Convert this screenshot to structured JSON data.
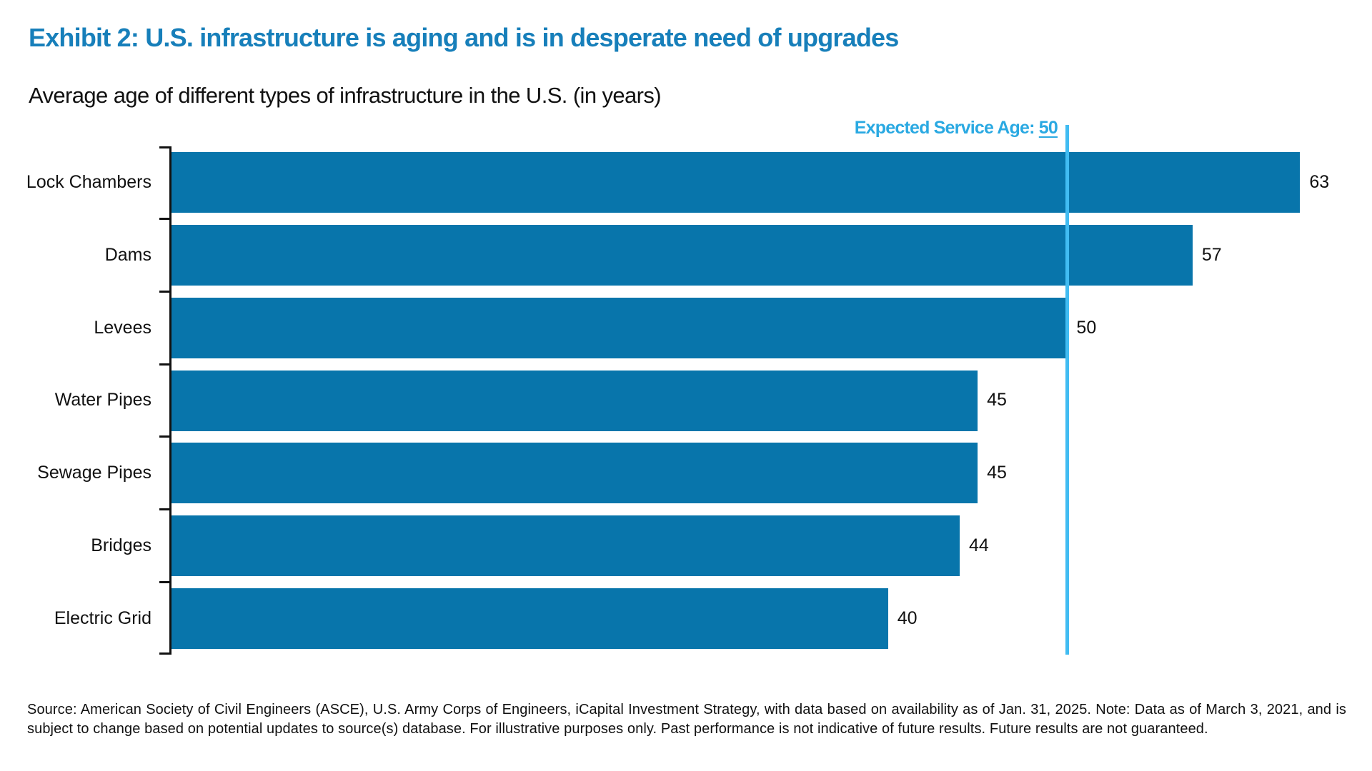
{
  "header": {
    "title": "Exhibit 2: U.S. infrastructure is aging and is in desperate need of upgrades",
    "subtitle": "Average age of different types of infrastructure in the U.S. (in years)"
  },
  "chart_data": {
    "type": "bar",
    "orientation": "horizontal",
    "title": "Average age of different types of infrastructure in the U.S. (in years)",
    "categories": [
      "Lock Chambers",
      "Dams",
      "Levees",
      "Water Pipes",
      "Sewage Pipes",
      "Bridges",
      "Electric Grid"
    ],
    "values": [
      63,
      57,
      50,
      45,
      45,
      44,
      40
    ],
    "value_labels": [
      "63",
      "57",
      "50",
      "45",
      "45",
      "44",
      "40"
    ],
    "xlabel": "",
    "ylabel": "",
    "xlim": [
      0,
      65.5
    ],
    "grid": false,
    "legend": false,
    "reference_line": {
      "label_prefix": "Expected Service Age: ",
      "value_label": "50",
      "value": 50
    },
    "colors": {
      "bar": "#0875AB",
      "reference_line": "#41BCF2",
      "reference_label": "#2AA9E2",
      "axis": "#111111",
      "title": "#177FBA",
      "text": "#111111"
    }
  },
  "footer": {
    "source_note": "Source: American Society of Civil Engineers (ASCE), U.S. Army Corps of Engineers, iCapital Investment Strategy, with data based on availability as of Jan. 31, 2025. Note: Data as of March 3, 2021, and is subject to change based on potential updates to source(s) database. For illustrative purposes only. Past performance is not indicative of future results. Future results are not guaranteed."
  }
}
